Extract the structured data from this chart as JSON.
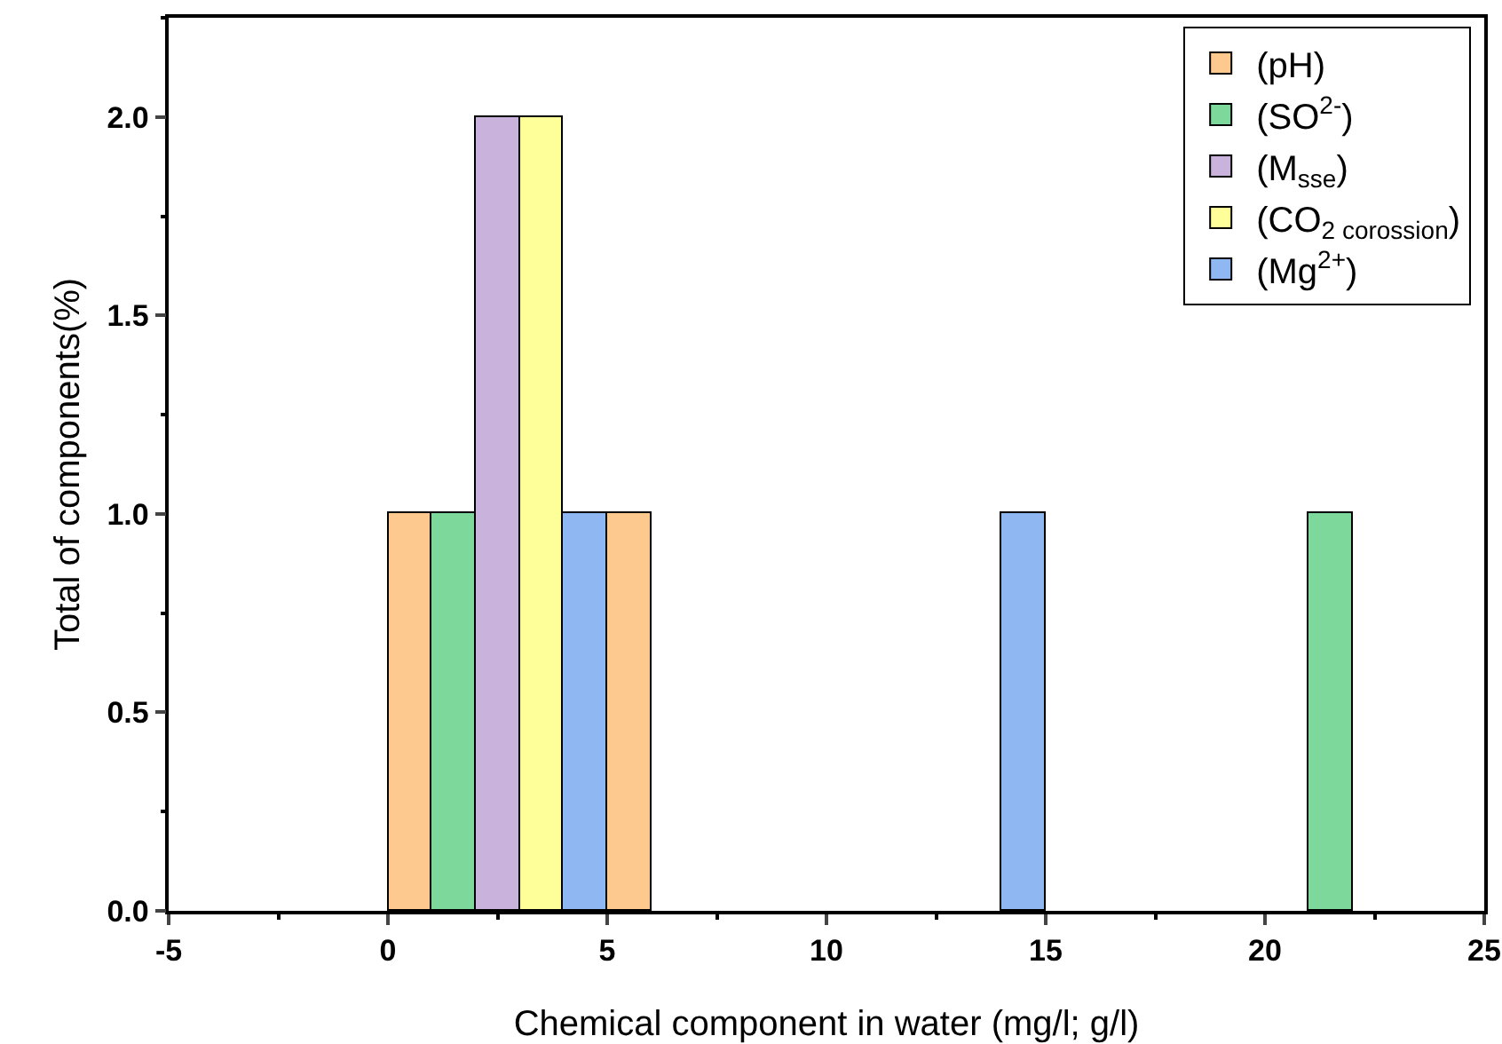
{
  "chart_data": {
    "type": "bar",
    "xlabel": "Chemical component in water (mg/l; g/l)",
    "ylabel": "Total of components(%)",
    "xlim": [
      -5,
      25
    ],
    "xticks": [
      -5,
      0,
      5,
      10,
      15,
      20,
      25
    ],
    "ylim": [
      0,
      2.25
    ],
    "yticks": [
      {
        "value": 0,
        "label": "0.0"
      },
      {
        "value": 0.5,
        "label": "0.5"
      },
      {
        "value": 1,
        "label": "1.0"
      },
      {
        "value": 1.5,
        "label": "1.5"
      },
      {
        "value": 2,
        "label": "2.0"
      }
    ],
    "grid": false,
    "legend": "top right",
    "series": [
      {
        "name": "(pH)",
        "color": "#fdc98e",
        "x": [
          0.5,
          5.5
        ],
        "values": [
          1,
          1
        ]
      },
      {
        "name": "(SO$^{2-}$)",
        "color": "#7dd89b",
        "x": [
          1.5,
          21.5
        ],
        "values": [
          1,
          1
        ]
      },
      {
        "name": "(M$_{sse}$)",
        "color": "#c9b3dc",
        "x": [
          2.5
        ],
        "values": [
          2
        ]
      },
      {
        "name": "(CO$_{2 corossion}$)",
        "color": "#ffff99",
        "x": [
          3.5
        ],
        "values": [
          2
        ]
      },
      {
        "name": "(Mg$^{2+}$)",
        "color": "#8fb8f2",
        "x": [
          4.5,
          14.5
        ],
        "values": [
          1,
          1
        ]
      }
    ]
  }
}
